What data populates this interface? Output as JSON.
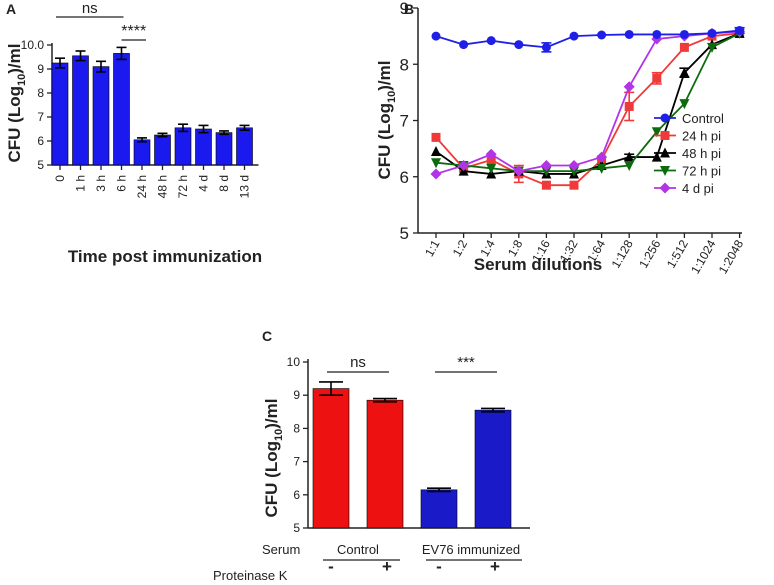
{
  "chart_data": [
    {
      "panel": "A",
      "type": "bar",
      "title": "",
      "xlabel": "Time post immunization",
      "ylabel_parts": [
        "CFU (Log",
        "10",
        ")/ml"
      ],
      "ylim": [
        5,
        10
      ],
      "yticks": [
        "5",
        "6",
        "7",
        "8",
        "9",
        "10.0"
      ],
      "categories": [
        "0",
        "1 h",
        "3 h",
        "6 h",
        "24 h",
        "48 h",
        "72 h",
        "4 d",
        "8 d",
        "13 d"
      ],
      "values": [
        9.25,
        9.55,
        9.1,
        9.65,
        6.05,
        6.25,
        6.55,
        6.5,
        6.35,
        6.55
      ],
      "errors": [
        0.2,
        0.2,
        0.22,
        0.25,
        0.08,
        0.07,
        0.15,
        0.15,
        0.07,
        0.1
      ],
      "bar_color": "#1a1aee",
      "annotations": [
        {
          "text": "ns",
          "from": 0,
          "to": 3
        },
        {
          "text": "****",
          "from": 3,
          "to": 4
        }
      ]
    },
    {
      "panel": "B",
      "type": "line",
      "xlabel": "Serum dilutions",
      "ylabel_parts": [
        "CFU (Log",
        "10",
        ")/ml"
      ],
      "ylim": [
        5,
        9
      ],
      "yticks": [
        "5",
        "6",
        "7",
        "8",
        "9"
      ],
      "categories": [
        "1:1",
        "1:2",
        "1:4",
        "1:8",
        "1:16",
        "1:32",
        "1:64",
        "1:128",
        "1:256",
        "1:512",
        "1:1024",
        "1:2048"
      ],
      "series": [
        {
          "name": "Control",
          "color": "#1f1fe8",
          "marker": "circle",
          "values": [
            8.5,
            8.35,
            8.42,
            8.35,
            8.3,
            8.5,
            8.52,
            8.53,
            8.53,
            8.53,
            8.55,
            8.6
          ],
          "errors": [
            0,
            0,
            0,
            0,
            0.08,
            0,
            0,
            0,
            0,
            0,
            0,
            0.05
          ]
        },
        {
          "name": "24 h pi",
          "color": "#f03a3a",
          "marker": "square",
          "values": [
            6.7,
            6.15,
            6.3,
            6.05,
            5.85,
            5.85,
            6.3,
            7.25,
            7.75,
            8.3,
            8.5,
            8.55
          ],
          "errors": [
            0,
            0,
            0,
            0.15,
            0,
            0,
            0,
            0.25,
            0.1,
            0,
            0,
            0
          ]
        },
        {
          "name": "48 h pi",
          "color": "#000000",
          "marker": "triangle-up",
          "values": [
            6.45,
            6.1,
            6.05,
            6.1,
            6.05,
            6.05,
            6.2,
            6.35,
            6.35,
            7.85,
            8.35,
            8.55
          ],
          "errors": [
            0,
            0,
            0,
            0,
            0,
            0,
            0,
            0.05,
            0,
            0.08,
            0,
            0
          ]
        },
        {
          "name": "72 h pi",
          "color": "#0d6b0d",
          "marker": "triangle-down",
          "values": [
            6.25,
            6.2,
            6.15,
            6.1,
            6.1,
            6.1,
            6.15,
            6.2,
            6.8,
            7.3,
            8.3,
            8.55
          ],
          "errors": [
            0,
            0,
            0,
            0,
            0,
            0,
            0,
            0,
            0,
            0,
            0,
            0
          ]
        },
        {
          "name": "4 d pi",
          "color": "#b333e6",
          "marker": "diamond",
          "values": [
            6.05,
            6.2,
            6.4,
            6.1,
            6.2,
            6.2,
            6.35,
            7.6,
            8.45,
            8.5,
            8.55,
            8.58
          ],
          "errors": [
            0,
            0,
            0,
            0,
            0,
            0,
            0,
            0,
            0,
            0,
            0,
            0
          ]
        }
      ],
      "legend_position": "right"
    },
    {
      "panel": "C",
      "type": "bar",
      "ylabel_parts": [
        "CFU (Log",
        "10",
        ")/ml"
      ],
      "ylim": [
        5,
        10
      ],
      "yticks": [
        "5",
        "6",
        "7",
        "8",
        "9",
        "10"
      ],
      "bars": [
        {
          "value": 9.2,
          "error": 0.2,
          "color": "#ee1111",
          "group": "Control",
          "proteinase": "-"
        },
        {
          "value": 8.85,
          "error": 0.05,
          "color": "#ee1111",
          "group": "Control",
          "proteinase": "+"
        },
        {
          "value": 6.15,
          "error": 0.05,
          "color": "#1a1ac8",
          "group": "EV76 immunized",
          "proteinase": "-"
        },
        {
          "value": 8.55,
          "error": 0.05,
          "color": "#1a1ac8",
          "group": "EV76 immunized",
          "proteinase": "+"
        }
      ],
      "row_labels": {
        "serum": "Serum",
        "proteinase": "Proteinase K"
      },
      "groups": [
        "Control",
        "EV76 immunized"
      ],
      "annotations": [
        {
          "text": "ns",
          "from": 0,
          "to": 1
        },
        {
          "text": "***",
          "from": 2,
          "to": 3
        }
      ]
    }
  ]
}
